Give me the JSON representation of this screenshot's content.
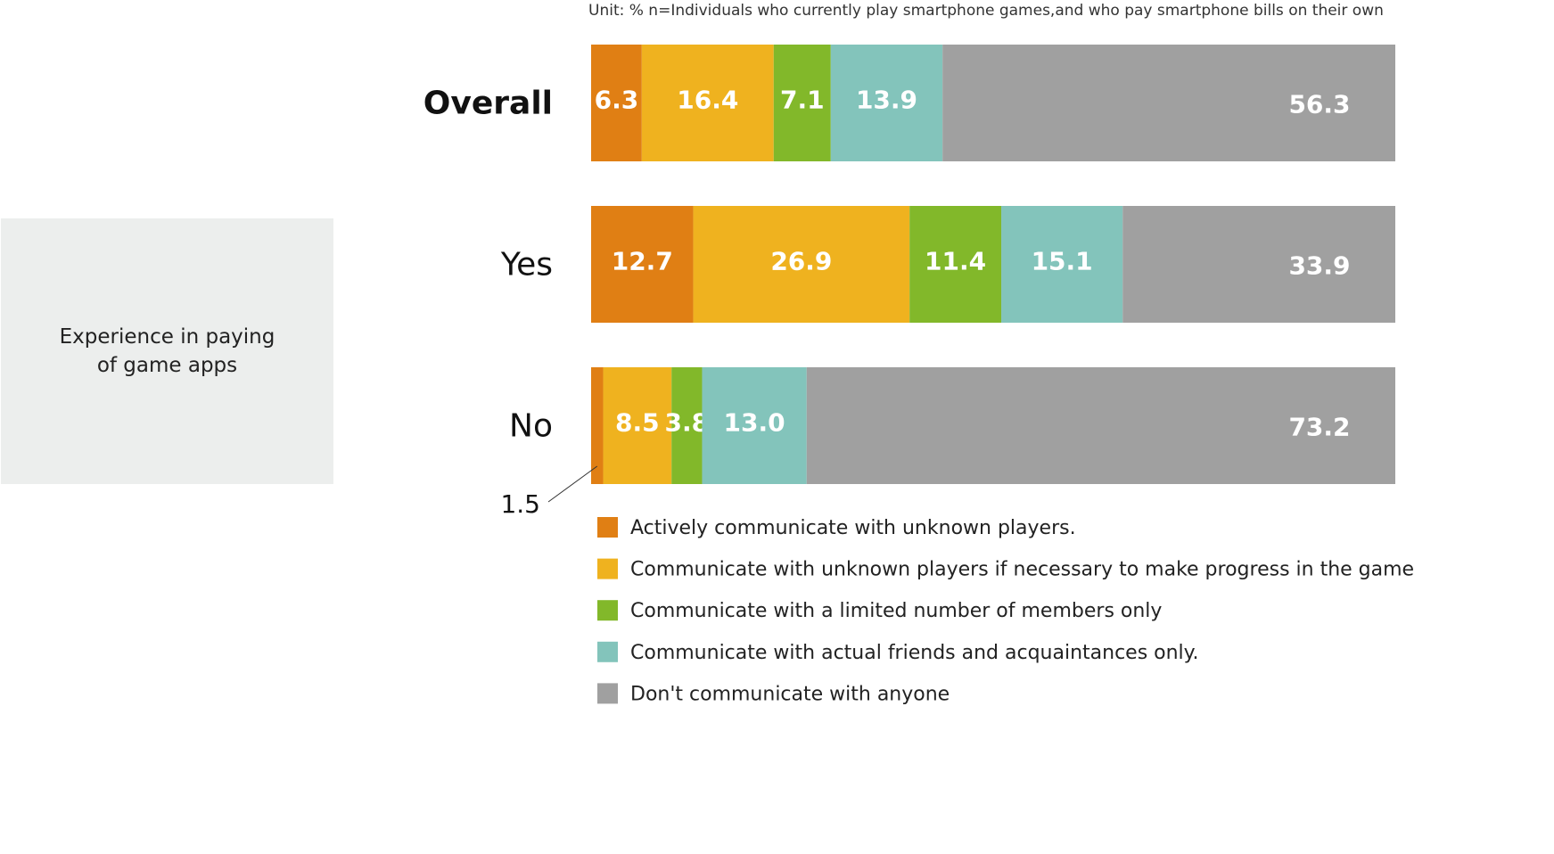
{
  "chart_data": {
    "type": "stacked-bar-horizontal",
    "note": "Unit: %  n=Individuals who currently play smartphone games,and who pay smartphone bills on their own",
    "group_label": "Experience in paying of game apps",
    "categories": [
      "Overall",
      "Yes",
      "No"
    ],
    "xlim": [
      0,
      100
    ],
    "series": [
      {
        "name": "Actively communicate with unknown players.",
        "color": "#e07f14",
        "values": [
          6.3,
          12.7,
          1.5
        ]
      },
      {
        "name": "Communicate with unknown players if necessary to make progress in the game",
        "color": "#efb21f",
        "values": [
          16.4,
          26.9,
          8.5
        ]
      },
      {
        "name": "Communicate with a limited number of members only",
        "color": "#82b82a",
        "values": [
          7.1,
          11.4,
          3.8
        ]
      },
      {
        "name": "Communicate with actual friends and acquaintances only.",
        "color": "#83c4bb",
        "values": [
          13.9,
          15.1,
          13.0
        ],
        "value_labels": [
          "13.9",
          "15.1",
          "13.0"
        ]
      },
      {
        "name": "Don't communicate with anyone",
        "color": "#a0a0a0",
        "values": [
          56.3,
          33.9,
          73.2
        ]
      }
    ]
  }
}
